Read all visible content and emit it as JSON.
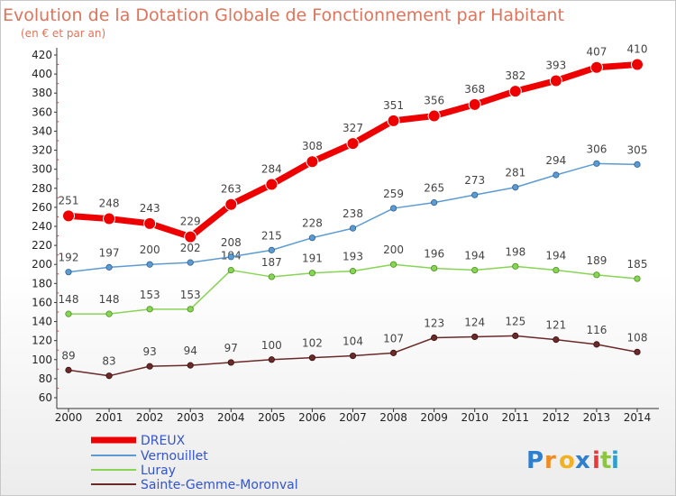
{
  "chart_data": {
    "type": "line",
    "title": "Evolution de la Dotation Globale de Fonctionnement par Habitant",
    "subtitle": "(en € et par an)",
    "categories": [
      "2000",
      "2001",
      "2002",
      "2003",
      "2004",
      "2005",
      "2006",
      "2007",
      "2008",
      "2009",
      "2010",
      "2011",
      "2012",
      "2013",
      "2014"
    ],
    "ylim": [
      60,
      420
    ],
    "yticks": [
      60,
      80,
      100,
      120,
      140,
      160,
      180,
      200,
      220,
      240,
      260,
      280,
      300,
      320,
      340,
      360,
      380,
      400,
      420
    ],
    "grid": false,
    "legend_position": "bottom-left",
    "series": [
      {
        "name": "DREUX",
        "color": "#ee0000",
        "values": [
          251,
          248,
          243,
          229,
          263,
          284,
          308,
          327,
          351,
          356,
          368,
          382,
          393,
          407,
          410
        ],
        "labels": [
          "251",
          "248",
          "243",
          "229",
          "263",
          "284",
          "308",
          "327",
          "351",
          "356",
          "368",
          "382",
          "393",
          "407",
          "410"
        ]
      },
      {
        "name": "Vernouillet",
        "color": "#5c9bd1",
        "values": [
          192,
          197,
          200,
          202,
          208,
          215,
          228,
          238,
          259,
          265,
          273,
          281,
          294,
          306,
          305
        ],
        "labels": [
          "192",
          "197",
          "200",
          "202",
          "208",
          "215",
          "228",
          "238",
          "259",
          "265",
          "273",
          "281",
          "294",
          "306",
          "305"
        ]
      },
      {
        "name": "Luray",
        "color": "#88d455",
        "values": [
          148,
          148,
          153,
          153,
          194,
          187,
          191,
          193,
          200,
          196,
          194,
          198,
          194,
          189,
          185
        ],
        "labels": [
          "148",
          "148",
          "153",
          "153",
          "194",
          "187",
          "191",
          "193",
          "200",
          "196",
          "194",
          "198",
          "194",
          "189",
          "185"
        ]
      },
      {
        "name": "Sainte-Gemme-Moronval",
        "color": "#6b2a2a",
        "values": [
          89,
          83,
          93,
          94,
          97,
          100,
          102,
          104,
          107,
          123,
          124,
          125,
          121,
          116,
          108
        ],
        "labels": [
          "89",
          "83",
          "93",
          "94",
          "97",
          "100",
          "102",
          "104",
          "107",
          "123",
          "124",
          "125",
          "121",
          "116",
          "108"
        ]
      }
    ]
  },
  "logo": {
    "letters": [
      "P",
      "r",
      "o",
      "x",
      "i",
      "t",
      "i"
    ],
    "colors": [
      "#2f7fd0",
      "#f28a1e",
      "#f2b11e",
      "#2f7fd0",
      "#e83a3a",
      "#8cc63f",
      "#2f9fd0"
    ]
  }
}
